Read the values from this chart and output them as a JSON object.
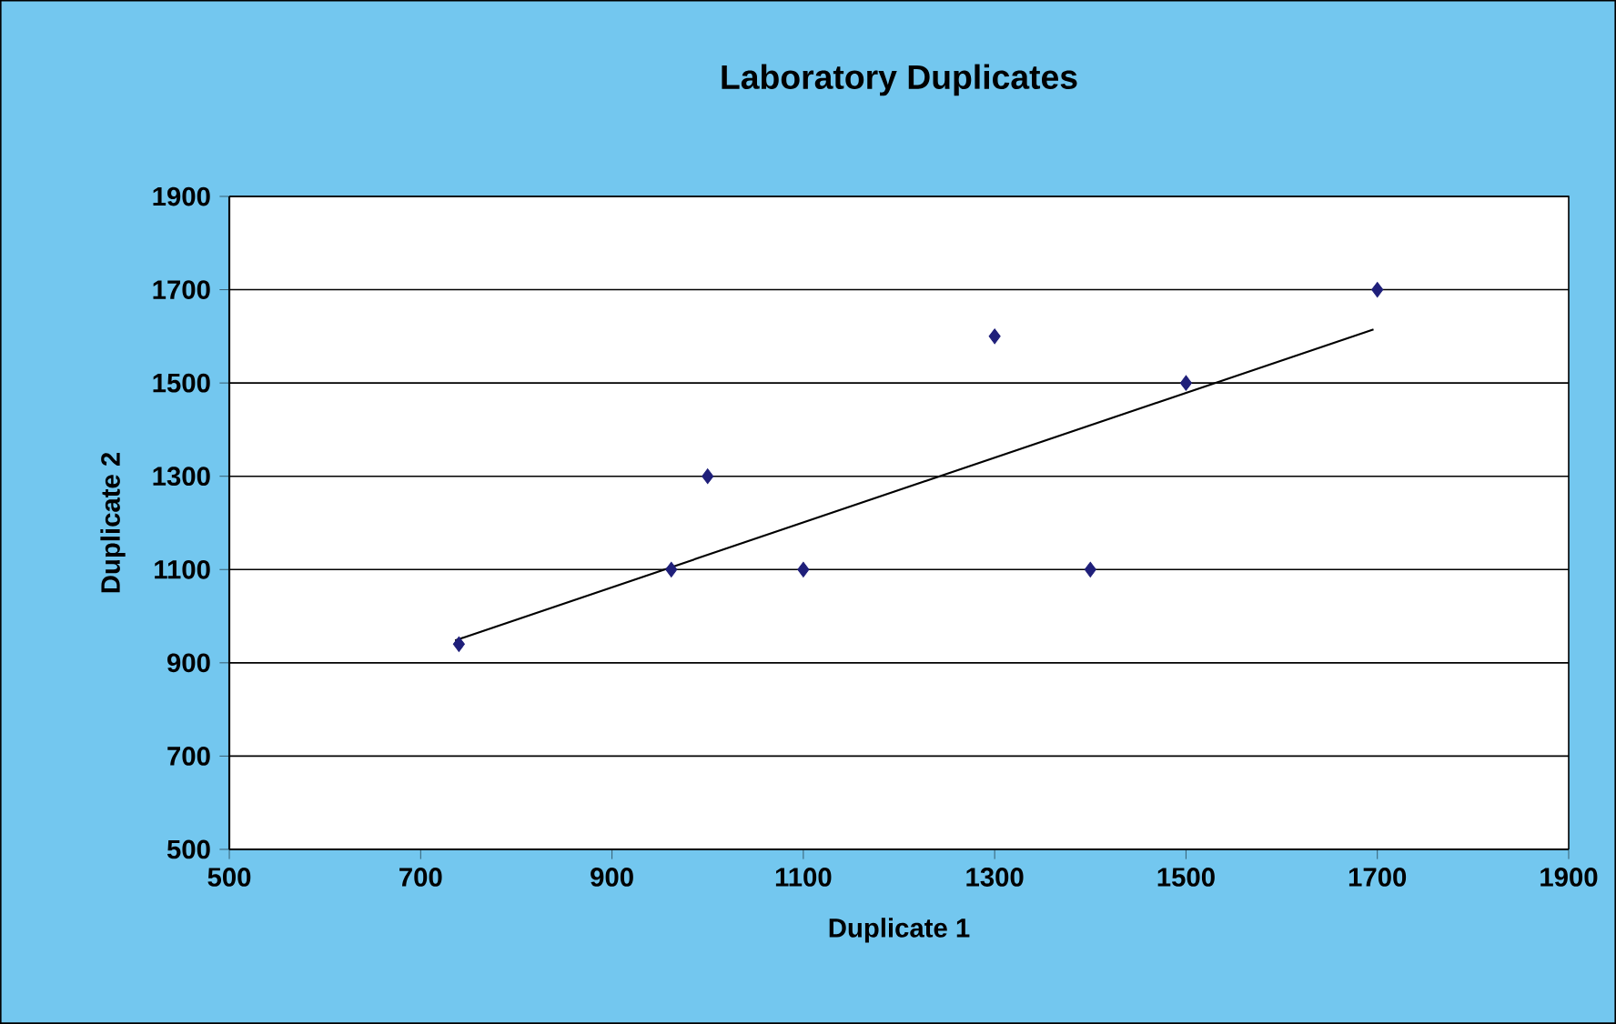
{
  "chart_data": {
    "type": "scatter",
    "title": "Laboratory Duplicates",
    "xlabel": "Duplicate 1",
    "ylabel": "Duplicate 2",
    "xlim": [
      500,
      1900
    ],
    "xticks": [
      500,
      700,
      900,
      1100,
      1300,
      1500,
      1700,
      1900
    ],
    "ylim": [
      500,
      1900
    ],
    "yticks": [
      500,
      700,
      900,
      1100,
      1300,
      1500,
      1700,
      1900
    ],
    "grid": "y",
    "marker": "diamond",
    "series": [
      {
        "color": "#1f1f7a",
        "x": [
          740,
          962,
          1000,
          1100,
          1300,
          1400,
          1500,
          1700
        ],
        "values": [
          940,
          1100,
          1300,
          1100,
          1600,
          1100,
          1500,
          1700
        ]
      },
      {
        "type": "line",
        "color": "#000000",
        "marker": "none",
        "x": [
          736,
          1696
        ],
        "values": [
          948,
          1615
        ]
      }
    ]
  }
}
